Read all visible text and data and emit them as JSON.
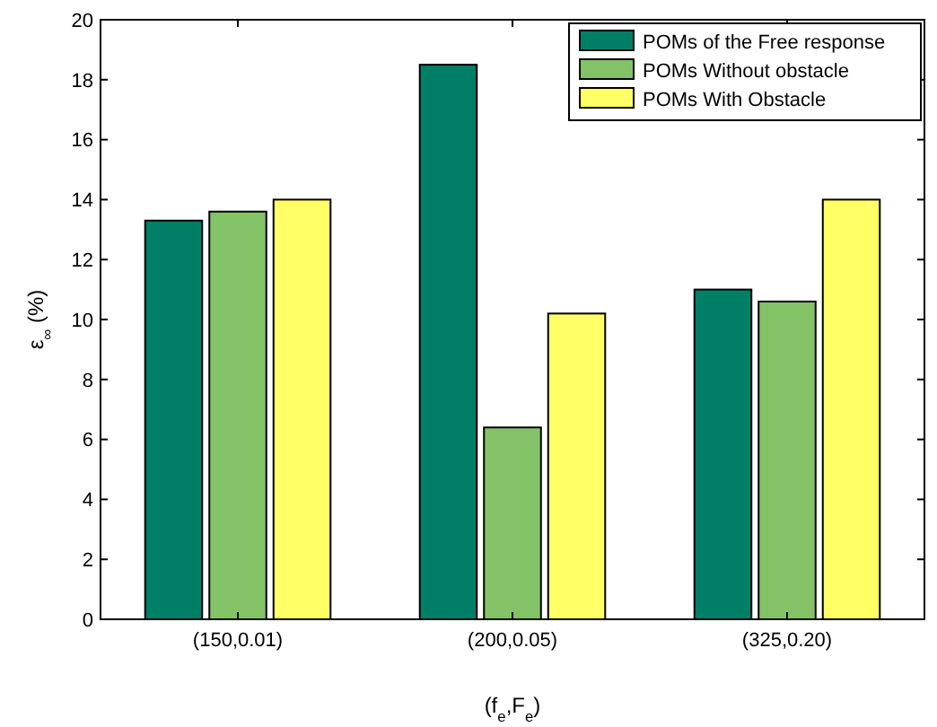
{
  "chart_data": {
    "type": "bar",
    "xlabel": "(f$_{e}$,F$_{e}$)",
    "ylabel": "ε$_{∞}$ (%)",
    "categories": [
      "(150,0.01)",
      "(200,0.05)",
      "(325,0.20)"
    ],
    "series": [
      {
        "name": "POMs of the Free response",
        "color": "#007f66",
        "values": [
          13.3,
          18.5,
          11.0
        ]
      },
      {
        "name": "POMs Without obstacle",
        "color": "#84c267",
        "values": [
          13.6,
          6.4,
          10.6
        ]
      },
      {
        "name": "POMs With Obstacle",
        "color": "#ffff66",
        "values": [
          14.0,
          10.2,
          14.0
        ]
      }
    ],
    "ylim": [
      0,
      20
    ],
    "yticks": [
      0,
      2,
      4,
      6,
      8,
      10,
      12,
      14,
      16,
      18,
      20
    ],
    "grid": false,
    "legend": "top right"
  }
}
